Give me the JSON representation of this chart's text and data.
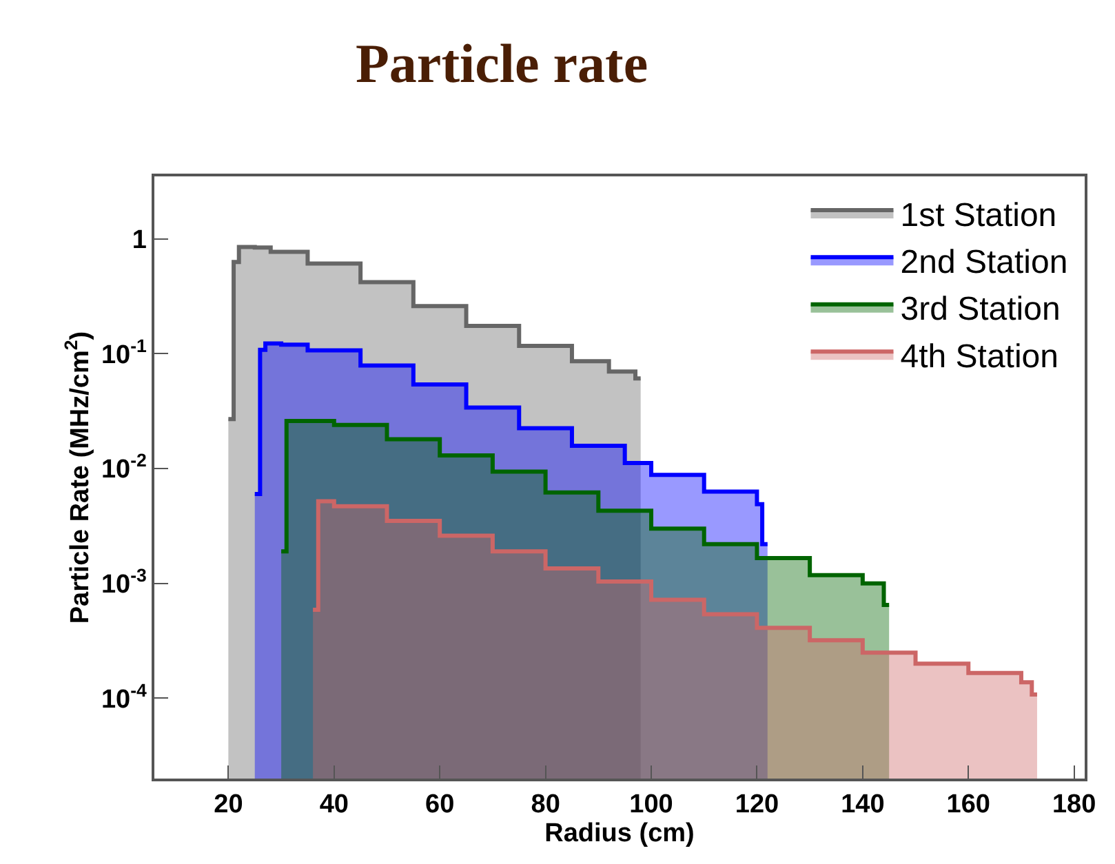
{
  "chart_data": {
    "type": "area",
    "title": "Particle rate",
    "xlabel": "Radius (cm)",
    "ylabel": "Particle Rate (MHz/cm$^{2}$)",
    "log": "y",
    "legend": "top right",
    "xlim": [
      6,
      182
    ],
    "xticks": [
      20,
      40,
      60,
      80,
      100,
      120,
      140,
      160,
      180
    ],
    "ylim": [
      2e-05,
      3.5
    ],
    "yticks": [
      {
        "value": 1,
        "label": "1"
      },
      {
        "value": 0.1,
        "label": "10$^{-1}$"
      },
      {
        "value": 0.01,
        "label": "10$^{-2}$"
      },
      {
        "value": 0.001,
        "label": "10$^{-3}$"
      },
      {
        "value": 0.0001,
        "label": "10$^{-4}$"
      }
    ],
    "series": [
      {
        "name": "1st Station",
        "color": "#666666",
        "x": [
          20,
          21,
          21,
          22,
          22,
          25,
          25,
          28,
          28,
          35,
          35,
          45,
          45,
          55,
          55,
          65,
          65,
          75,
          75,
          85,
          85,
          92,
          92,
          97,
          97,
          98
        ],
        "values": [
          0.027,
          0.027,
          0.63,
          0.63,
          0.85,
          0.85,
          0.84,
          0.84,
          0.77,
          0.77,
          0.61,
          0.61,
          0.42,
          0.42,
          0.26,
          0.26,
          0.175,
          0.175,
          0.117,
          0.117,
          0.086,
          0.086,
          0.07,
          0.07,
          0.061,
          0.061
        ]
      },
      {
        "name": "2nd Station",
        "color": "#0000ff",
        "x": [
          25,
          26,
          26,
          27,
          27,
          30,
          30,
          35,
          35,
          45,
          45,
          55,
          55,
          65,
          65,
          75,
          75,
          85,
          85,
          95,
          95,
          100,
          100,
          110,
          110,
          120,
          120,
          121,
          121,
          122
        ],
        "values": [
          0.006,
          0.006,
          0.108,
          0.108,
          0.123,
          0.123,
          0.12,
          0.12,
          0.107,
          0.107,
          0.079,
          0.079,
          0.054,
          0.054,
          0.034,
          0.034,
          0.0225,
          0.0225,
          0.0158,
          0.0158,
          0.0112,
          0.0112,
          0.0088,
          0.0088,
          0.0063,
          0.0063,
          0.0049,
          0.0049,
          0.0022,
          0.0022
        ]
      },
      {
        "name": "3rd Station",
        "color": "#006400",
        "x": [
          30,
          31,
          31,
          33,
          33,
          40,
          40,
          50,
          50,
          60,
          60,
          70,
          70,
          80,
          80,
          90,
          90,
          100,
          100,
          110,
          110,
          120,
          120,
          130,
          130,
          140,
          140,
          144,
          144,
          145
        ],
        "values": [
          0.0019,
          0.0019,
          0.026,
          0.026,
          0.026,
          0.026,
          0.024,
          0.024,
          0.018,
          0.018,
          0.013,
          0.013,
          0.0094,
          0.0094,
          0.0062,
          0.0062,
          0.0043,
          0.0043,
          0.003,
          0.003,
          0.0022,
          0.0022,
          0.00166,
          0.00166,
          0.00118,
          0.00118,
          0.001,
          0.001,
          0.00065,
          0.00065
        ]
      },
      {
        "name": "4th Station",
        "color": "#cc6666",
        "x": [
          36,
          37,
          37,
          40,
          40,
          50,
          50,
          60,
          60,
          70,
          70,
          80,
          80,
          90,
          90,
          100,
          100,
          110,
          110,
          120,
          120,
          130,
          130,
          140,
          140,
          150,
          150,
          160,
          160,
          170,
          170,
          172,
          172,
          173
        ],
        "values": [
          0.00059,
          0.00059,
          0.0052,
          0.0052,
          0.0047,
          0.0047,
          0.0035,
          0.0035,
          0.0026,
          0.0026,
          0.0019,
          0.0019,
          0.00135,
          0.00135,
          0.00104,
          0.00104,
          0.00072,
          0.00072,
          0.00054,
          0.00054,
          0.00041,
          0.00041,
          0.00032,
          0.00032,
          0.00025,
          0.00025,
          0.0002,
          0.0002,
          0.000166,
          0.000166,
          0.000138,
          0.000138,
          0.000108,
          0.000108
        ]
      }
    ]
  }
}
